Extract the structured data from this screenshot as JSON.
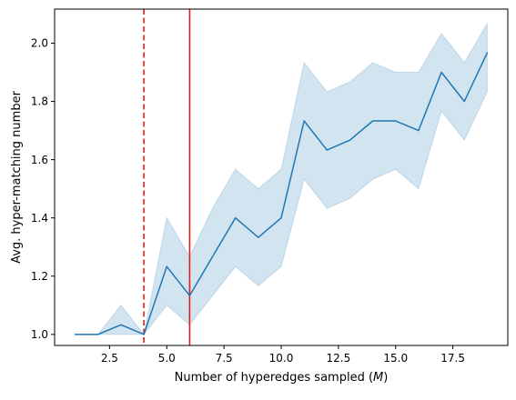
{
  "chart_data": {
    "type": "line",
    "xlabel": "Number of hyperedges sampled",
    "xlabel_var": "M",
    "ylabel": "Avg. hyper-matching number",
    "xlim": [
      0.1,
      19.9
    ],
    "ylim": [
      0.962,
      2.117
    ],
    "xticks": [
      2.5,
      5.0,
      7.5,
      10.0,
      12.5,
      15.0,
      17.5
    ],
    "xtick_labels": [
      "2.5",
      "5.0",
      "7.5",
      "10.0",
      "12.5",
      "15.0",
      "17.5"
    ],
    "yticks": [
      1.0,
      1.2,
      1.4,
      1.6,
      1.8,
      2.0
    ],
    "ytick_labels": [
      "1.0",
      "1.2",
      "1.4",
      "1.6",
      "1.8",
      "2.0"
    ],
    "grid": false,
    "series": [
      {
        "x": [
          1,
          2,
          3,
          4,
          5,
          6,
          7,
          8,
          9,
          10,
          11,
          12,
          13,
          14,
          15,
          16,
          17,
          18,
          19
        ],
        "y": [
          1.0,
          1.0,
          1.033,
          1.0,
          1.233,
          1.133,
          1.267,
          1.4,
          1.333,
          1.4,
          1.733,
          1.633,
          1.667,
          1.733,
          1.733,
          1.7,
          1.9,
          1.8,
          1.967
        ],
        "ci_lower": [
          1.0,
          1.0,
          1.0,
          1.0,
          1.1,
          1.033,
          1.133,
          1.233,
          1.167,
          1.233,
          1.533,
          1.433,
          1.467,
          1.533,
          1.567,
          1.5,
          1.767,
          1.667,
          1.833
        ],
        "ci_upper": [
          1.0,
          1.0,
          1.1,
          1.0,
          1.4,
          1.267,
          1.433,
          1.567,
          1.5,
          1.567,
          1.933,
          1.833,
          1.867,
          1.933,
          1.9,
          1.9,
          2.033,
          1.933,
          2.067
        ],
        "color": "#1f77b4",
        "band_color": "#1f77b4"
      }
    ],
    "vlines": [
      {
        "x": 4,
        "style": "dashed",
        "color": "#e41a1c"
      },
      {
        "x": 6,
        "style": "solid",
        "color": "#e41a1c"
      }
    ]
  }
}
